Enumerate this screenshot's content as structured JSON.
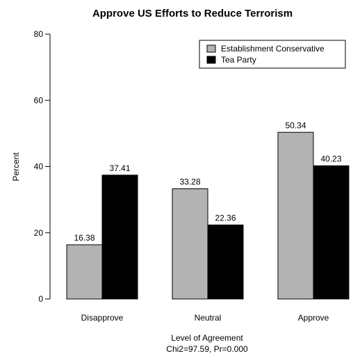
{
  "chart_data": {
    "type": "bar",
    "title": "Approve US Efforts to Reduce Terrorism",
    "xlabel": "Level of Agreement",
    "subtitle": "Chi2=97.59, Pr=0.000",
    "ylabel": "Percent",
    "categories": [
      "Disapprove",
      "Neutral",
      "Approve"
    ],
    "series": [
      {
        "name": "Establishment Conservative",
        "color": "#b3b3b3",
        "values": [
          16.38,
          33.28,
          50.34
        ]
      },
      {
        "name": "Tea Party",
        "color": "#000000",
        "values": [
          37.41,
          22.36,
          40.23
        ]
      }
    ],
    "value_labels": [
      [
        "16.38",
        "33.28",
        "50.34"
      ],
      [
        "37.41",
        "22.36",
        "40.23"
      ]
    ],
    "ylim": [
      0,
      80
    ],
    "yticks": [
      0,
      20,
      40,
      60,
      80
    ],
    "ytick_labels": [
      "0",
      "20",
      "40",
      "60",
      "80"
    ],
    "legend_position": "top-right",
    "grid": false
  }
}
